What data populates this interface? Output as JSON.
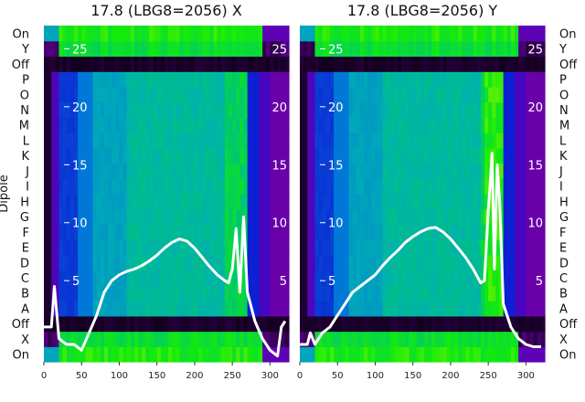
{
  "chart_data": [
    {
      "type": "heatmap",
      "title": "17.8 (LBG8=2056) X",
      "ylabel": "Dipole",
      "xlim": [
        0,
        325
      ],
      "x_ticks": [
        0,
        50,
        100,
        150,
        200,
        250,
        300
      ],
      "dipole_labels": [
        "On",
        "X",
        "Off",
        "A",
        "B",
        "C",
        "D",
        "E",
        "F",
        "G",
        "H",
        "I",
        "J",
        "K",
        "L",
        "M",
        "N",
        "O",
        "P",
        "Off",
        "Y",
        "On"
      ],
      "overlay_ylim": [
        -2,
        27
      ],
      "overlay_ticks": [
        5,
        10,
        15,
        20,
        25
      ],
      "overlay": {
        "type": "line",
        "color": "#ffffff",
        "x": [
          0,
          10,
          14,
          20,
          30,
          40,
          50,
          60,
          70,
          80,
          90,
          100,
          110,
          120,
          130,
          140,
          150,
          160,
          170,
          180,
          190,
          200,
          210,
          220,
          230,
          240,
          245,
          250,
          255,
          260,
          265,
          270,
          280,
          290,
          300,
          310,
          315,
          320
        ],
        "y": [
          1,
          1,
          4.5,
          0,
          -0.5,
          -0.5,
          -1,
          0.5,
          2,
          4,
          5,
          5.5,
          5.8,
          6,
          6.3,
          6.7,
          7.2,
          7.8,
          8.3,
          8.6,
          8.4,
          7.8,
          7,
          6.2,
          5.5,
          5,
          4.8,
          6,
          9.5,
          4,
          10.5,
          4,
          1.5,
          0,
          -1,
          -1.5,
          1,
          1.5
        ]
      }
    },
    {
      "type": "heatmap",
      "title": "17.8 (LBG8=2056) Y",
      "xlim": [
        0,
        325
      ],
      "x_ticks": [
        0,
        50,
        100,
        150,
        200,
        250,
        300
      ],
      "dipole_labels": [
        "On",
        "X",
        "Off",
        "A",
        "B",
        "C",
        "D",
        "E",
        "F",
        "G",
        "H",
        "I",
        "J",
        "K",
        "L",
        "M",
        "N",
        "O",
        "P",
        "Off",
        "Y",
        "On"
      ],
      "overlay_ylim": [
        -2,
        27
      ],
      "overlay_ticks": [
        5,
        10,
        15,
        20,
        25
      ],
      "overlay": {
        "type": "line",
        "color": "#ffffff",
        "x": [
          0,
          10,
          14,
          20,
          30,
          40,
          50,
          60,
          70,
          80,
          90,
          100,
          110,
          120,
          130,
          140,
          150,
          160,
          170,
          180,
          190,
          200,
          210,
          220,
          230,
          240,
          245,
          250,
          255,
          258,
          262,
          265,
          270,
          280,
          290,
          300,
          310,
          320
        ],
        "y": [
          -0.5,
          -0.5,
          0.5,
          -0.5,
          0.5,
          1,
          2,
          3,
          4,
          4.5,
          5,
          5.5,
          6.3,
          7,
          7.6,
          8.3,
          8.8,
          9.2,
          9.5,
          9.6,
          9.2,
          8.6,
          7.8,
          7,
          6,
          4.8,
          5,
          11,
          16,
          6,
          15,
          12,
          3,
          1,
          0,
          -0.5,
          -0.7,
          -0.7
        ]
      }
    }
  ]
}
